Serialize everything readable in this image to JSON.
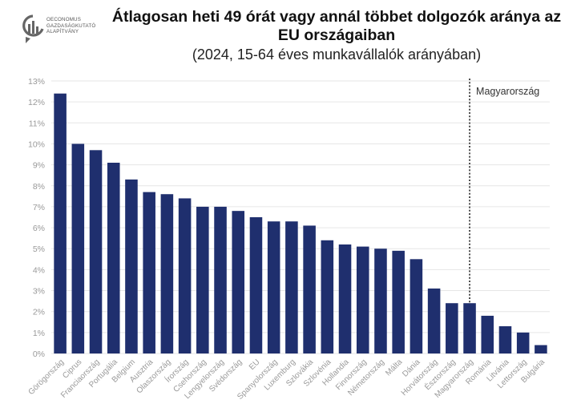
{
  "logo": {
    "lines": [
      "OECONOMUS",
      "GAZDASÁGKUTATÓ",
      "ALAPÍTVÁNY"
    ]
  },
  "colors": {
    "bar": "#1f2f6e",
    "grid": "#e6e6e6",
    "axis_text": "#999999"
  },
  "chart_data": {
    "type": "bar",
    "title_line1": "Átlagosan heti 49 órát vagy annál többet dolgozók aránya az",
    "title_line2": "EU országaiban",
    "subtitle": "(2024, 15-64 éves munkavállalók arányában)",
    "categories": [
      "Görögország",
      "Ciprus",
      "Franciaország",
      "Portugália",
      "Belgium",
      "Ausztria",
      "Olaszország",
      "Írország",
      "Csehország",
      "Lengyelország",
      "Svédország",
      "EU",
      "Spanyolország",
      "Luxemburg",
      "Szlovákia",
      "Szlovénia",
      "Hollandia",
      "Finnország",
      "Németország",
      "Málta",
      "Dánia",
      "Horvátország",
      "Észtország",
      "Magyarország",
      "Románia",
      "Litvánia",
      "Lettország",
      "Bulgária"
    ],
    "values": [
      12.4,
      10.0,
      9.7,
      9.1,
      8.3,
      7.7,
      7.6,
      7.4,
      7.0,
      7.0,
      6.8,
      6.5,
      6.3,
      6.3,
      6.1,
      5.4,
      5.2,
      5.1,
      5.0,
      4.9,
      4.5,
      3.1,
      2.4,
      2.4,
      1.8,
      1.3,
      1.0,
      0.4
    ],
    "ylim": [
      0,
      13
    ],
    "yticks": [
      "0%",
      "1%",
      "2%",
      "3%",
      "4%",
      "5%",
      "6%",
      "7%",
      "8%",
      "9%",
      "10%",
      "11%",
      "12%",
      "13%"
    ],
    "grid": true,
    "annotation": {
      "label": "Magyarország",
      "category": "Magyarország",
      "style": "dotted-vertical-line"
    }
  }
}
